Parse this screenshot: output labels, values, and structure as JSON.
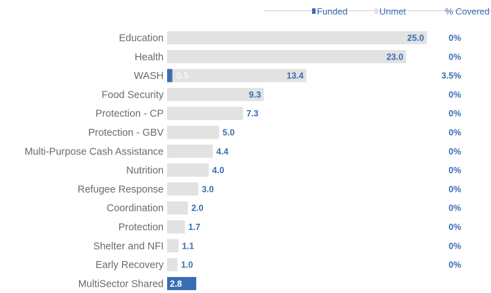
{
  "chart_data": {
    "type": "bar",
    "orientation": "horizontal",
    "stacked": true,
    "legend": {
      "placement": "top-right",
      "entries": [
        {
          "label": "Funded",
          "color": "#3a6db3"
        },
        {
          "label": "Unmet",
          "color": "#e2e2e2"
        }
      ],
      "pct_header": "% Covered"
    },
    "categories": [
      "Education",
      "Health",
      "WASH",
      "Food Security",
      "Protection - CP",
      "Protection - GBV",
      "Multi-Purpose Cash Assistance",
      "Nutrition",
      "Refugee Response",
      "Coordination",
      "Protection",
      "Shelter and NFI",
      "Early Recovery",
      "MultiSector Shared"
    ],
    "series": [
      {
        "name": "Funded",
        "values": [
          0,
          0,
          0.5,
          0,
          0,
          0,
          0,
          0,
          0,
          0,
          0,
          0,
          0,
          2.8
        ]
      },
      {
        "name": "Unmet",
        "values": [
          25.0,
          23.0,
          12.9,
          9.3,
          7.3,
          5.0,
          4.4,
          4.0,
          3.0,
          2.0,
          1.7,
          1.1,
          1.0,
          0
        ]
      }
    ],
    "total_labels": [
      "25.0",
      "23.0",
      "13.4",
      "9.3",
      "7.3",
      "5.0",
      "4.4",
      "4.0",
      "3.0",
      "2.0",
      "1.7",
      "1.1",
      "1.0",
      "2.8"
    ],
    "funded_label": [
      "",
      "",
      "0.5",
      "",
      "",
      "",
      "",
      "",
      "",
      "",
      "",
      "",
      "",
      ""
    ],
    "pct_covered": [
      "0%",
      "0%",
      "3.5%",
      "0%",
      "0%",
      "0%",
      "0%",
      "0%",
      "0%",
      "0%",
      "0%",
      "0%",
      "0%",
      ""
    ],
    "xlim": [
      0,
      25.7
    ],
    "grid": false,
    "colors": {
      "funded": "#3a6db3",
      "unmet": "#e2e2e2",
      "text": "#6b6b6b"
    }
  }
}
